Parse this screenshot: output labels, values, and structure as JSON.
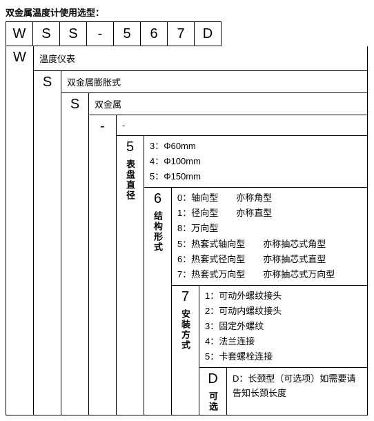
{
  "title": "双金属温度计使用选型：",
  "code": [
    "W",
    "S",
    "S",
    "-",
    "5",
    "6",
    "7",
    "D"
  ],
  "levels": [
    {
      "key": "W",
      "label": "",
      "desc": "温度仪表"
    },
    {
      "key": "S",
      "label": "",
      "desc": "双金属膨胀式"
    },
    {
      "key": "S",
      "label": "",
      "desc": "双金属"
    },
    {
      "key": "-",
      "label": "",
      "desc": "-"
    }
  ],
  "l5": {
    "key": "5",
    "label": "表盘直径",
    "options": [
      "3：Φ60mm",
      "4：Φ100mm",
      "5：Φ150mm"
    ]
  },
  "l6": {
    "key": "6",
    "label": "结构形式",
    "options": [
      "0：轴向型　　亦称角型",
      "1：径向型　　亦称直型",
      "8：万向型",
      "5：热套式轴向型　　亦称抽芯式角型",
      "6：热套式径向型　　亦称抽芯式直型",
      "7：热套式万向型　　亦称抽芯式万向型"
    ]
  },
  "l7": {
    "key": "7",
    "label": "安装方式",
    "options": [
      "1：可动外螺纹接头",
      "2：可动内螺纹接头",
      "3：固定外螺纹",
      "4：法兰连接",
      "5：卡套螺栓连接"
    ]
  },
  "lD": {
    "key": "D",
    "label": "可选",
    "desc": "D：长颈型（可选项）如需要请告知长颈长度"
  }
}
